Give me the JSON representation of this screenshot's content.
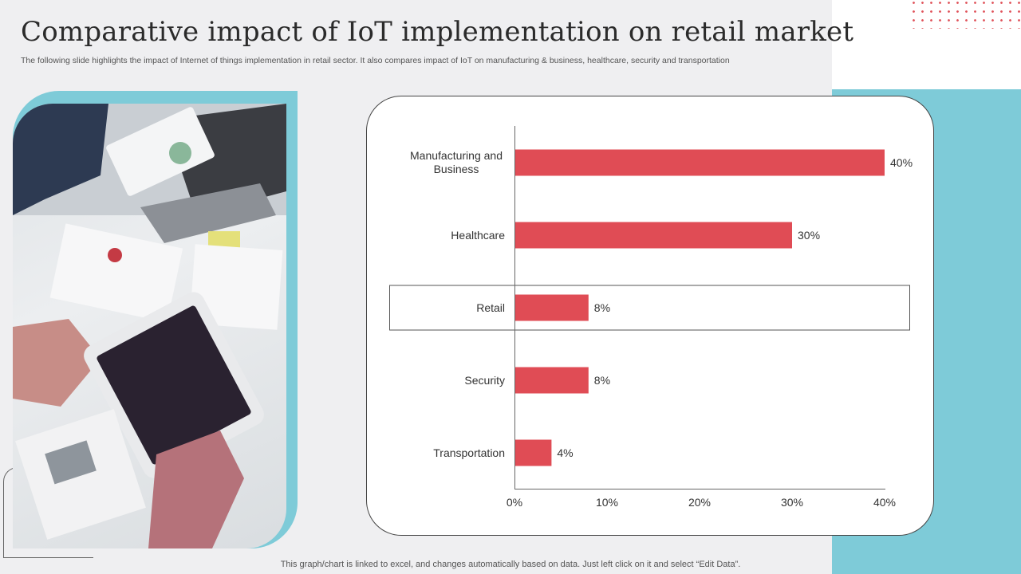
{
  "slide": {
    "title": "Comparative impact of IoT implementation on retail market",
    "subtitle": "The following slide highlights the impact of Internet of things implementation in retail sector. It also compares impact of IoT  on manufacturing & business, healthcare, security and transportation",
    "footer": "This graph/chart is linked to excel,  and changes automatically based on data. Just left click on it and select “Edit Data”."
  },
  "colors": {
    "bar": "#e04c55",
    "accent": "#7ecbd8",
    "dots": "#e0535b"
  },
  "chart_data": {
    "type": "bar",
    "orientation": "horizontal",
    "categories": [
      "Manufacturing and Business",
      "Healthcare",
      "Retail",
      "Security",
      "Transportation"
    ],
    "values": [
      40,
      30,
      8,
      8,
      4
    ],
    "data_labels": [
      "40%",
      "30%",
      "8%",
      "8%",
      "4%"
    ],
    "xlim": [
      0,
      40
    ],
    "xticks": [
      0,
      10,
      20,
      30,
      40
    ],
    "xtick_labels": [
      "0%",
      "10%",
      "20%",
      "30%",
      "40%"
    ],
    "highlighted_category": "Retail",
    "grid": false,
    "legend": "none"
  }
}
